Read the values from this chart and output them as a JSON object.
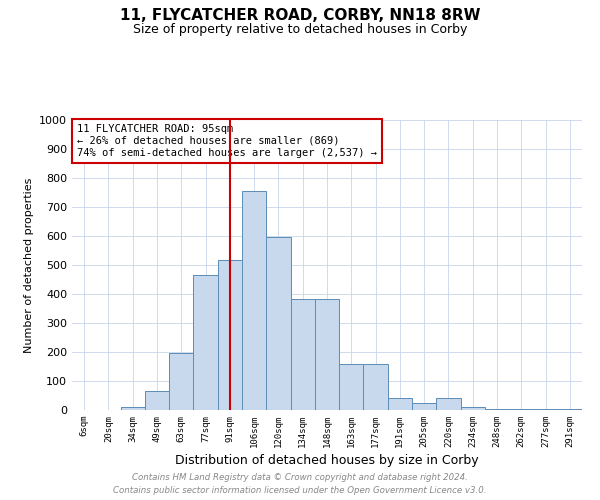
{
  "title_line1": "11, FLYCATCHER ROAD, CORBY, NN18 8RW",
  "title_line2": "Size of property relative to detached houses in Corby",
  "xlabel": "Distribution of detached houses by size in Corby",
  "ylabel": "Number of detached properties",
  "categories": [
    "6sqm",
    "20sqm",
    "34sqm",
    "49sqm",
    "63sqm",
    "77sqm",
    "91sqm",
    "106sqm",
    "120sqm",
    "134sqm",
    "148sqm",
    "163sqm",
    "177sqm",
    "191sqm",
    "205sqm",
    "220sqm",
    "234sqm",
    "248sqm",
    "262sqm",
    "277sqm",
    "291sqm"
  ],
  "values": [
    0,
    0,
    10,
    65,
    195,
    467,
    517,
    755,
    595,
    383,
    383,
    160,
    160,
    40,
    25,
    42,
    10,
    5,
    5,
    5,
    5
  ],
  "bar_color": "#c8d9ee",
  "bar_edge_color": "#5b8db8",
  "vline_x": 6,
  "vline_color": "#cc0000",
  "annotation_text": "11 FLYCATCHER ROAD: 95sqm\n← 26% of detached houses are smaller (869)\n74% of semi-detached houses are larger (2,537) →",
  "annotation_box_color": "#ffffff",
  "annotation_box_edge_color": "#cc0000",
  "ylim": [
    0,
    1000
  ],
  "yticks": [
    0,
    100,
    200,
    300,
    400,
    500,
    600,
    700,
    800,
    900,
    1000
  ],
  "footer_line1": "Contains HM Land Registry data © Crown copyright and database right 2024.",
  "footer_line2": "Contains public sector information licensed under the Open Government Licence v3.0.",
  "footer_color": "#888888",
  "background_color": "#ffffff",
  "grid_color": "#c8d5e8"
}
